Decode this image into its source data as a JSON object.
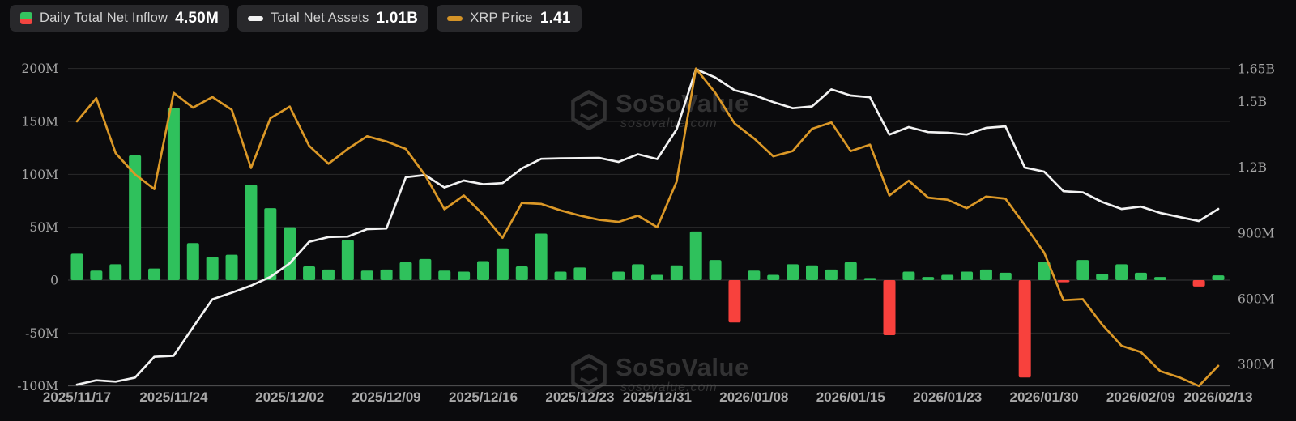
{
  "page": {
    "background": "#0b0b0d"
  },
  "legend": {
    "items": [
      {
        "id": "daily-net-inflow",
        "label": "Daily Total Net Inflow",
        "value": "4.50M",
        "icon": "split-square",
        "icon_color_top": "#35c35f",
        "icon_color_bottom": "#f34540"
      },
      {
        "id": "total-net-assets",
        "label": "Total Net Assets",
        "value": "1.01B",
        "icon": "dash",
        "icon_color": "#f2f2f2"
      },
      {
        "id": "xrp-price",
        "label": "XRP Price",
        "value": "1.41",
        "icon": "dash",
        "icon_color": "#d49327"
      }
    ]
  },
  "watermark": {
    "brand": "SoSoValue",
    "domain": "sosovalue.com"
  },
  "chart_data": {
    "type": "combo-bar-line",
    "n_points": 60,
    "grid": "horizontal",
    "legend_position": "top-left",
    "x_ticks": [
      {
        "label": "2025/11/17",
        "index": 0
      },
      {
        "label": "2025/11/24",
        "index": 5
      },
      {
        "label": "2025/12/02",
        "index": 11
      },
      {
        "label": "2025/12/09",
        "index": 16
      },
      {
        "label": "2025/12/16",
        "index": 21
      },
      {
        "label": "2025/12/23",
        "index": 26
      },
      {
        "label": "2025/12/31",
        "index": 30
      },
      {
        "label": "2026/01/08",
        "index": 35
      },
      {
        "label": "2026/01/15",
        "index": 40
      },
      {
        "label": "2026/01/23",
        "index": 45
      },
      {
        "label": "2026/01/30",
        "index": 50
      },
      {
        "label": "2026/02/09",
        "index": 55
      },
      {
        "label": "2026/02/13",
        "index": 59
      }
    ],
    "left_axis": {
      "unit": "M (USD, Daily Total Net Inflow)",
      "range_m": [
        -100,
        200
      ],
      "ticks": [
        {
          "label": "200M",
          "value": 200
        },
        {
          "label": "150M",
          "value": 150
        },
        {
          "label": "100M",
          "value": 100
        },
        {
          "label": "50M",
          "value": 50
        },
        {
          "label": "0",
          "value": 0
        },
        {
          "label": "-50M",
          "value": -50
        },
        {
          "label": "-100M",
          "value": -100
        }
      ]
    },
    "right_axis": {
      "unit": "M (USD, Total Net Assets)",
      "range_m": [
        300,
        1650
      ],
      "ticks": [
        {
          "label": "1.65B",
          "value": 1650
        },
        {
          "label": "1.5B",
          "value": 1500
        },
        {
          "label": "1.2B",
          "value": 1200
        },
        {
          "label": "900M",
          "value": 900
        },
        {
          "label": "600M",
          "value": 600
        },
        {
          "label": "300M",
          "value": 300
        }
      ]
    },
    "series": [
      {
        "name": "Daily Total Net Inflow",
        "type": "bar",
        "axis": "left",
        "unit": "M USD",
        "current_label": "4.50M",
        "color_positive": "#2fc15c",
        "color_negative": "#f8413d",
        "values": [
          25,
          9,
          15,
          118,
          11,
          163,
          35,
          22,
          24,
          90,
          68,
          50,
          13,
          10,
          38,
          9,
          10,
          17,
          20,
          9,
          8,
          18,
          30,
          13,
          44,
          8,
          12,
          0,
          8,
          15,
          5,
          14,
          46,
          19,
          -40,
          9,
          5,
          15,
          14,
          10,
          17,
          2,
          -52,
          8,
          3,
          5,
          8,
          10,
          7,
          -92,
          17,
          -2,
          19,
          6,
          15,
          7,
          3,
          0,
          -6,
          4.5
        ]
      },
      {
        "name": "Total Net Assets",
        "type": "line",
        "axis": "right",
        "unit": "M USD",
        "current_label": "1.01B",
        "color": "#f2f2f2",
        "values": [
          208,
          228,
          222,
          240,
          335,
          340,
          470,
          598,
          628,
          660,
          700,
          762,
          860,
          882,
          884,
          918,
          921,
          1155,
          1165,
          1108,
          1140,
          1123,
          1128,
          1195,
          1239,
          1241,
          1242,
          1243,
          1225,
          1260,
          1238,
          1373,
          1648,
          1610,
          1552,
          1530,
          1498,
          1470,
          1478,
          1556,
          1528,
          1520,
          1350,
          1384,
          1361,
          1358,
          1350,
          1380,
          1387,
          1199,
          1180,
          1091,
          1086,
          1042,
          1010,
          1021,
          992,
          973,
          955,
          1010
        ]
      },
      {
        "name": "XRP Price",
        "type": "line",
        "axis": "hidden (plotted against left axis, M-units)",
        "current_label": "1.41",
        "color": "#db9827",
        "values_plotted_on_left_axis_m": [
          150,
          172,
          120,
          100,
          86,
          177,
          163,
          173,
          161,
          106,
          153,
          164,
          127,
          110,
          124,
          136,
          131,
          124,
          99,
          67,
          80,
          62,
          40,
          73,
          72,
          66,
          61,
          57,
          55,
          61,
          50,
          93,
          200,
          177,
          148,
          134,
          117,
          122,
          143,
          149,
          122,
          128,
          80,
          94,
          78,
          76,
          68,
          79,
          77,
          52,
          26,
          -19,
          -18,
          -42,
          -62,
          -68,
          -86,
          -92,
          -100,
          -81
        ]
      }
    ]
  }
}
